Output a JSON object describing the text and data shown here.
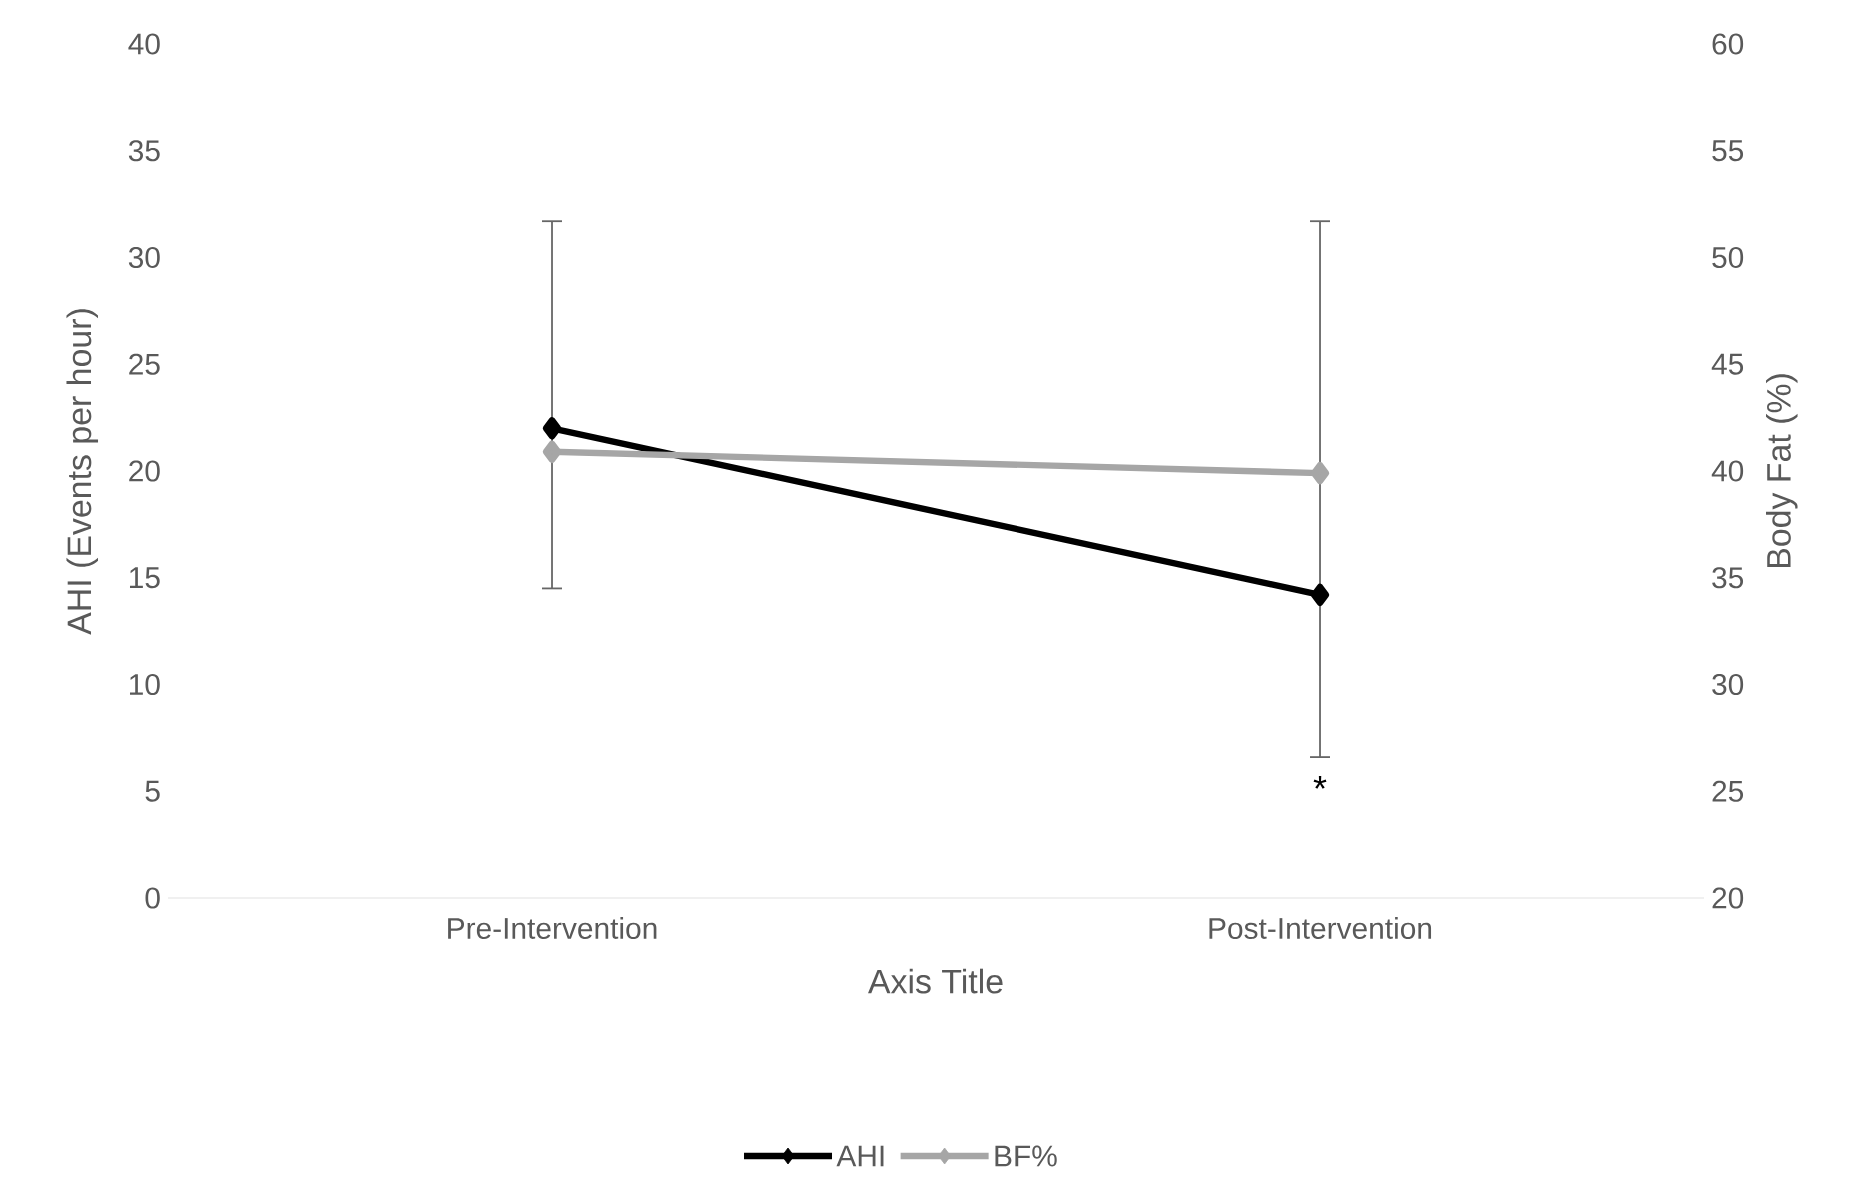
{
  "chart_data": {
    "type": "line",
    "xlabel": "Axis Title",
    "ylabel": "AHI (Events per hour)",
    "y2label": "Body Fat (%)",
    "categories": [
      "Pre-Intervention",
      "Post-Intervention"
    ],
    "series": [
      {
        "name": "AHI",
        "color": "#000000",
        "values": [
          22.0,
          14.2
        ],
        "errors": [
          [
            14.5,
            31.7
          ],
          [
            6.6,
            31.7
          ]
        ]
      },
      {
        "name": "BF%",
        "color": "#a6a6a6",
        "values": [
          40.9,
          39.9
        ],
        "axis": "y2"
      }
    ],
    "ylim": [
      0,
      40
    ],
    "yticks": [
      0,
      5,
      10,
      15,
      20,
      25,
      30,
      35,
      40
    ],
    "y2lim": [
      20,
      60
    ],
    "y2ticks": [
      20,
      25,
      30,
      35,
      40,
      45,
      50,
      55,
      60
    ],
    "annotations": [
      "*"
    ],
    "marker": "diamond",
    "legend": "bottom"
  }
}
